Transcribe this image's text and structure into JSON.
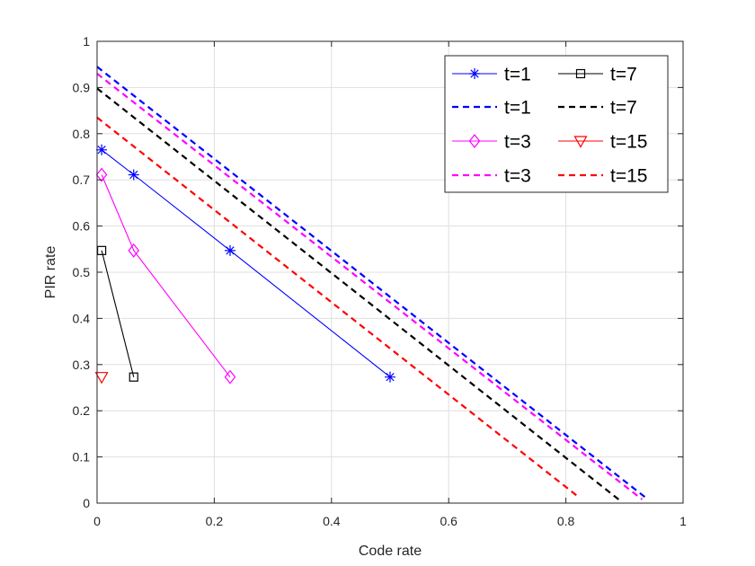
{
  "chart_data": {
    "type": "line",
    "xlabel": "Code rate",
    "ylabel": "PIR rate",
    "xlim": [
      0,
      1
    ],
    "ylim": [
      0,
      1
    ],
    "xticks": [
      "0",
      "0.2",
      "0.4",
      "0.6",
      "0.8",
      "1"
    ],
    "yticks": [
      "0",
      "0.1",
      "0.2",
      "0.3",
      "0.4",
      "0.5",
      "0.6",
      "0.7",
      "0.8",
      "0.9",
      "1"
    ],
    "grid": true,
    "legend_position": "top-right",
    "series": [
      {
        "name": "t=1",
        "color": "#0000ff",
        "style": "solid",
        "marker": "asterisk",
        "x": [
          0.0078,
          0.0625,
          0.227,
          0.5
        ],
        "y": [
          0.765,
          0.711,
          0.547,
          0.273
        ]
      },
      {
        "name": "t=7",
        "color": "#000000",
        "style": "solid",
        "marker": "square",
        "x": [
          0.0078,
          0.0625
        ],
        "y": [
          0.547,
          0.273
        ]
      },
      {
        "name": "t=1",
        "color": "#0000ff",
        "style": "dashed",
        "marker": "none",
        "x": [
          0,
          0.938
        ],
        "y": [
          0.945,
          0.01
        ]
      },
      {
        "name": "t=7",
        "color": "#000000",
        "style": "dashed",
        "marker": "none",
        "x": [
          0,
          0.89
        ],
        "y": [
          0.898,
          0.008
        ]
      },
      {
        "name": "t=3",
        "color": "#ff00ff",
        "style": "solid",
        "marker": "diamond",
        "x": [
          0.0078,
          0.0625,
          0.227
        ],
        "y": [
          0.711,
          0.547,
          0.273
        ]
      },
      {
        "name": "t=15",
        "color": "#ff0000",
        "style": "solid",
        "marker": "triangle-down",
        "x": [
          0.0078
        ],
        "y": [
          0.273
        ]
      },
      {
        "name": "t=3",
        "color": "#ff00ff",
        "style": "dashed",
        "marker": "none",
        "x": [
          0,
          0.93
        ],
        "y": [
          0.93,
          0.008
        ]
      },
      {
        "name": "t=15",
        "color": "#ff0000",
        "style": "dashed",
        "marker": "none",
        "x": [
          0,
          0.82
        ],
        "y": [
          0.835,
          0.015
        ]
      }
    ]
  }
}
